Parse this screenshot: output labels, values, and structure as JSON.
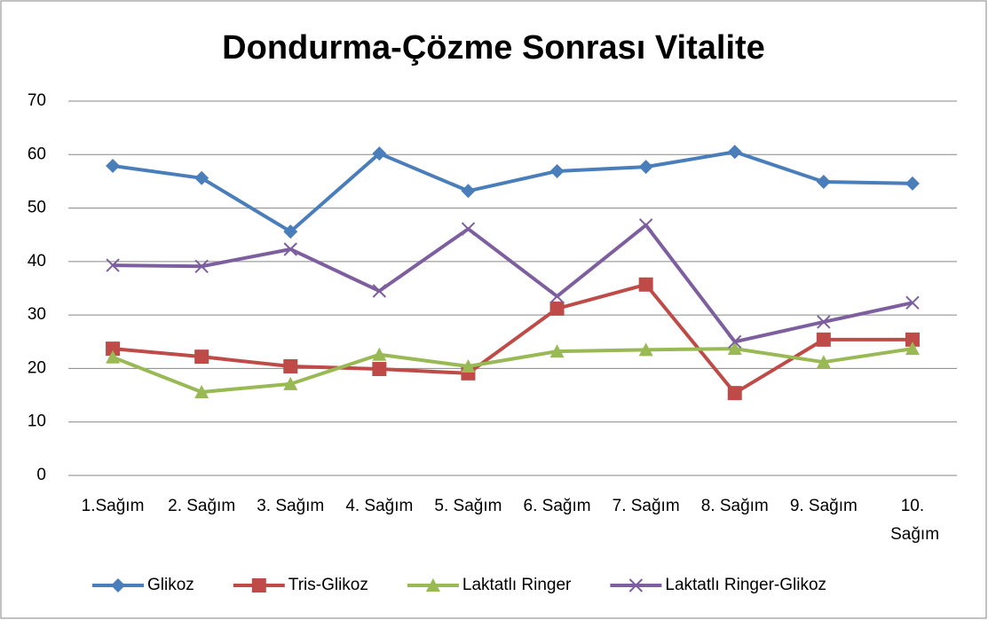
{
  "chart_data": {
    "type": "line",
    "title": "Dondurma-Çözme Sonrası Vitalite",
    "categories": [
      "1.Sağım",
      "2. Sağım",
      "3. Sağım",
      "4. Sağım",
      "5. Sağım",
      "6. Sağım",
      "7. Sağım",
      "8. Sağım",
      "9. Sağım",
      "10. Sağım"
    ],
    "series": [
      {
        "name": "Glikoz",
        "color": "#4a7ebb",
        "marker": "diamond",
        "values": [
          57.9,
          55.6,
          45.6,
          60.2,
          53.2,
          56.9,
          57.7,
          60.5,
          54.9,
          54.6
        ]
      },
      {
        "name": "Tris-Glikoz",
        "color": "#be4b48",
        "marker": "square",
        "values": [
          23.7,
          22.2,
          20.4,
          19.9,
          19.1,
          31.2,
          35.7,
          15.4,
          25.4,
          25.4
        ]
      },
      {
        "name": "Laktatlı Ringer",
        "color": "#98b954",
        "marker": "triangle",
        "values": [
          22.1,
          15.6,
          17.1,
          22.6,
          20.4,
          23.2,
          23.5,
          23.7,
          21.2,
          23.7
        ]
      },
      {
        "name": "Laktatlı Ringer-Glikoz",
        "color": "#7d5fa0",
        "marker": "x",
        "values": [
          39.3,
          39.1,
          42.3,
          34.5,
          46.1,
          33.5,
          46.8,
          25.0,
          28.7,
          32.3
        ]
      }
    ],
    "ylim": [
      0,
      70
    ],
    "yticks": [
      0,
      10,
      20,
      30,
      40,
      50,
      60,
      70
    ],
    "grid": true,
    "legend": "bottom"
  }
}
